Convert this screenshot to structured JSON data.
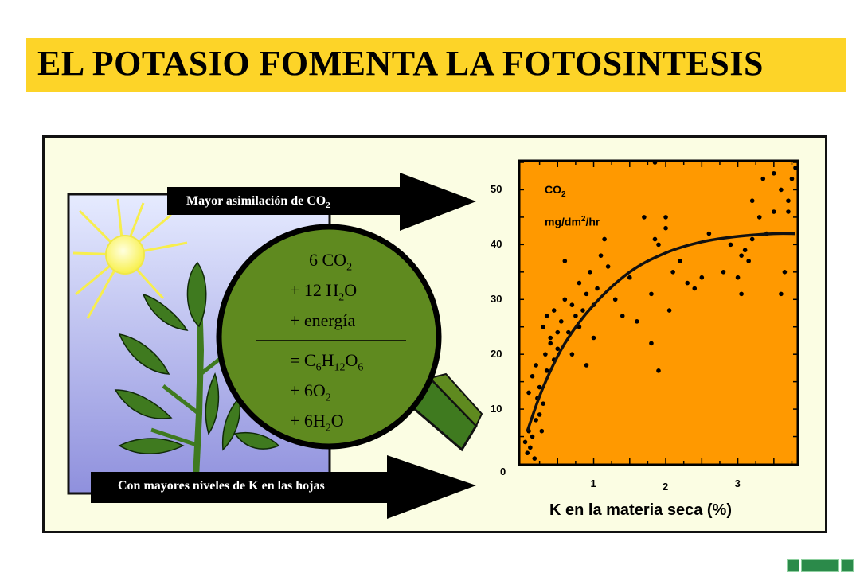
{
  "title": "EL POTASIO FOMENTA LA FOTOSINTESIS",
  "colors": {
    "title_bg": "#fdd428",
    "panel_bg": "#fbfde3",
    "chart_bg": "#ff9900",
    "leaf": "#5f8a1f",
    "lens": "#5f8a1f"
  },
  "arrows": {
    "top_label": "Mayor asimilación de CO",
    "top_sub": "2",
    "bottom_label": "Con mayores niveles de K en las hojas"
  },
  "equation": {
    "line1": {
      "a": "6 CO",
      "sub": "2"
    },
    "line2": {
      "a": "+ 12 H",
      "sub": "2",
      "b": "O"
    },
    "line3": "+ energía",
    "line4": {
      "a": "= C",
      "s1": "6",
      "b": "H",
      "s2": "12",
      "c": "O",
      "s3": "6"
    },
    "line5": {
      "a": "+ 6O",
      "sub": "2"
    },
    "line6": {
      "a": "+ 6H",
      "sub": "2",
      "b": "O"
    }
  },
  "chart_data": {
    "type": "scatter",
    "xlabel": "K en la materia seca (%)",
    "ylabel_parts": {
      "a": "CO",
      "sub": "2",
      "unit_a": "mg/dm",
      "unit_sup": "2",
      "unit_b": "/hr"
    },
    "xlim": [
      0,
      3.8
    ],
    "ylim": [
      0,
      55
    ],
    "xticks": [
      "1",
      "2",
      "3"
    ],
    "yticks": [
      "0",
      "10",
      "20",
      "30",
      "40",
      "50"
    ],
    "points": [
      [
        0.05,
        4
      ],
      [
        0.08,
        2
      ],
      [
        0.1,
        6
      ],
      [
        0.12,
        3
      ],
      [
        0.15,
        5
      ],
      [
        0.18,
        1
      ],
      [
        0.2,
        8
      ],
      [
        0.22,
        12
      ],
      [
        0.25,
        9
      ],
      [
        0.28,
        6
      ],
      [
        0.1,
        13
      ],
      [
        0.15,
        16
      ],
      [
        0.2,
        18
      ],
      [
        0.25,
        14
      ],
      [
        0.3,
        11
      ],
      [
        0.33,
        20
      ],
      [
        0.35,
        17
      ],
      [
        0.4,
        22
      ],
      [
        0.45,
        19
      ],
      [
        0.5,
        24
      ],
      [
        0.3,
        25
      ],
      [
        0.35,
        27
      ],
      [
        0.4,
        23
      ],
      [
        0.45,
        28
      ],
      [
        0.5,
        21
      ],
      [
        0.55,
        26
      ],
      [
        0.6,
        30
      ],
      [
        0.65,
        24
      ],
      [
        0.7,
        29
      ],
      [
        0.75,
        27
      ],
      [
        0.8,
        33
      ],
      [
        0.85,
        28
      ],
      [
        0.9,
        31
      ],
      [
        0.95,
        35
      ],
      [
        1.0,
        29
      ],
      [
        1.05,
        32
      ],
      [
        1.1,
        38
      ],
      [
        1.15,
        41
      ],
      [
        1.2,
        36
      ],
      [
        1.3,
        30
      ],
      [
        0.6,
        37
      ],
      [
        0.7,
        20
      ],
      [
        0.8,
        25
      ],
      [
        0.9,
        18
      ],
      [
        1.0,
        23
      ],
      [
        1.4,
        27
      ],
      [
        1.5,
        34
      ],
      [
        1.6,
        26
      ],
      [
        1.8,
        31
      ],
      [
        1.9,
        40
      ],
      [
        2.0,
        43
      ],
      [
        2.1,
        35
      ],
      [
        2.2,
        37
      ],
      [
        2.3,
        33
      ],
      [
        2.4,
        32
      ],
      [
        2.5,
        34
      ],
      [
        2.6,
        42
      ],
      [
        2.8,
        35
      ],
      [
        2.9,
        40
      ],
      [
        3.0,
        34
      ],
      [
        3.05,
        31
      ],
      [
        3.1,
        39
      ],
      [
        3.2,
        41
      ],
      [
        3.3,
        45
      ],
      [
        3.4,
        42
      ],
      [
        3.5,
        46
      ],
      [
        3.6,
        50
      ],
      [
        3.7,
        48
      ],
      [
        3.75,
        52
      ],
      [
        3.8,
        54
      ],
      [
        3.2,
        48
      ],
      [
        3.35,
        52
      ],
      [
        3.5,
        53
      ],
      [
        3.7,
        46
      ],
      [
        3.6,
        31
      ],
      [
        3.65,
        35
      ],
      [
        1.8,
        22
      ],
      [
        1.7,
        45
      ],
      [
        1.85,
        41
      ],
      [
        2.0,
        45
      ],
      [
        1.9,
        17
      ],
      [
        2.05,
        28
      ],
      [
        1.85,
        55
      ],
      [
        3.05,
        38
      ],
      [
        3.15,
        37
      ]
    ],
    "trend": [
      [
        0.08,
        6
      ],
      [
        0.3,
        14
      ],
      [
        0.6,
        22
      ],
      [
        1.0,
        29
      ],
      [
        1.5,
        35
      ],
      [
        2.0,
        38.5
      ],
      [
        2.5,
        40.5
      ],
      [
        3.0,
        41.5
      ],
      [
        3.5,
        42
      ],
      [
        3.8,
        42
      ]
    ]
  }
}
